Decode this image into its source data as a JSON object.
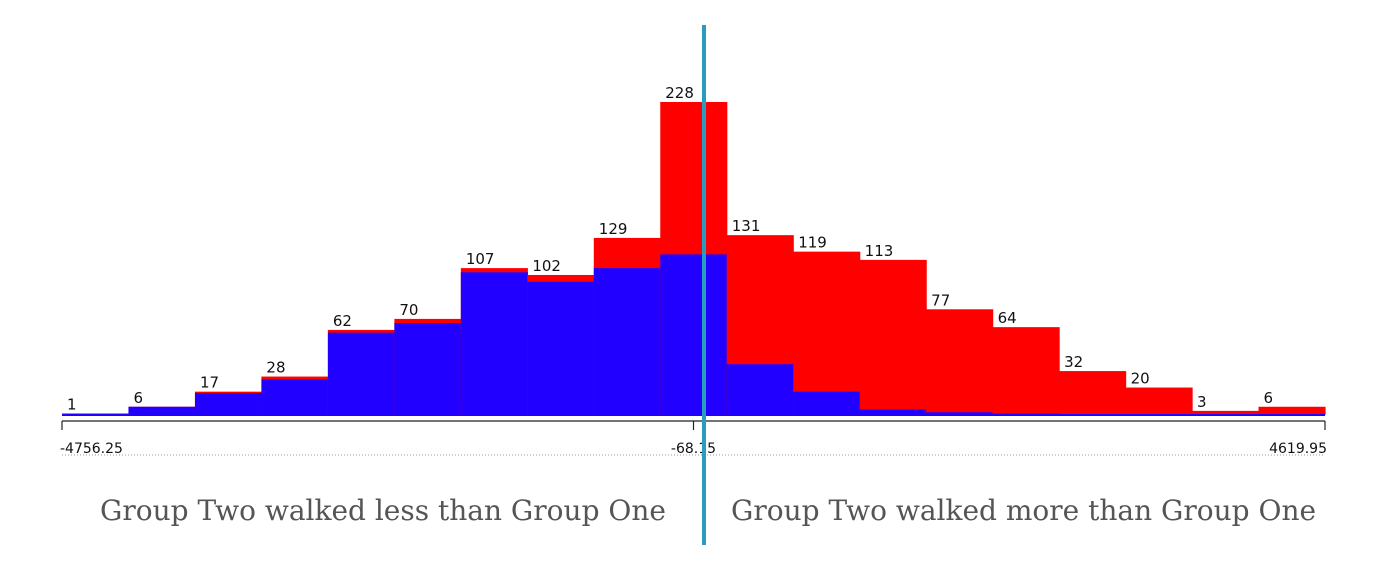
{
  "chart_data": {
    "type": "bar",
    "bin_counts": [
      1,
      6,
      17,
      28,
      62,
      70,
      107,
      102,
      129,
      228,
      131,
      119,
      113,
      77,
      64,
      32,
      20,
      3,
      6
    ],
    "blue_heights": [
      1,
      6,
      16,
      26,
      60,
      67,
      104,
      97,
      107,
      117,
      37,
      17,
      4,
      2,
      1,
      0.5,
      0.5,
      0,
      0
    ],
    "x_tick_labels": [
      "-4756.25",
      "-68.15",
      "4619.95"
    ],
    "x_ticks": [
      -4756.25,
      -68.15,
      4619.95
    ],
    "xlim": [
      -4756.25,
      4619.95
    ],
    "ylim": [
      0,
      228
    ],
    "series_colors": {
      "left_fill": "#2200ff",
      "total_fill": "#ff0000",
      "divider": "#2a9cc0"
    }
  },
  "captions": {
    "left": "Group Two walked less than Group One",
    "right": "Group Two walked more than Group One"
  }
}
